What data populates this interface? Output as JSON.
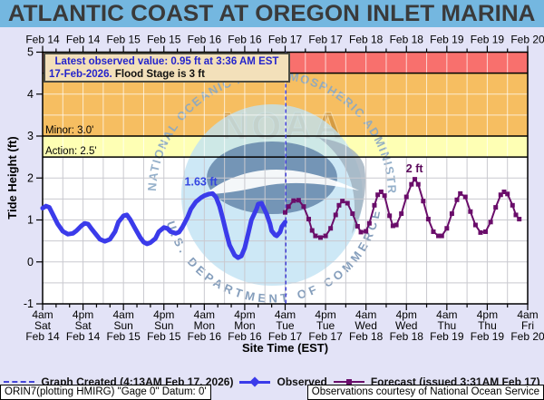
{
  "title": "ATLANTIC COAST AT OREGON INLET MARINA",
  "info_box": {
    "line1": "Latest observed value: 0.95 ft at 3:36 AM EST",
    "line2_date": "17-Feb-2026.",
    "line2_flood": " Flood Stage is 3 ft"
  },
  "axes": {
    "y_label": "Tide Height (ft)",
    "x_label": "Site Time (EST)",
    "y_ticks": [
      5,
      4,
      3,
      2,
      1,
      0,
      -1
    ],
    "top_dates": [
      "Feb 14",
      "Feb 14",
      "Feb 15",
      "Feb 15",
      "Feb 16",
      "Feb 16",
      "Feb 17",
      "Feb 17",
      "Feb 18",
      "Feb 18",
      "Feb 19",
      "Feb 19",
      "Feb 20"
    ],
    "bottom_ticks": [
      {
        "time": "4am",
        "day": "Sat",
        "date": "Feb 14"
      },
      {
        "time": "4pm",
        "day": "Sat",
        "date": "Feb 14"
      },
      {
        "time": "4am",
        "day": "Sun",
        "date": "Feb 15"
      },
      {
        "time": "4pm",
        "day": "Sun",
        "date": "Feb 15"
      },
      {
        "time": "4am",
        "day": "Mon",
        "date": "Feb 16"
      },
      {
        "time": "4pm",
        "day": "Mon",
        "date": "Feb 16"
      },
      {
        "time": "4am",
        "day": "Tue",
        "date": "Feb 17"
      },
      {
        "time": "4pm",
        "day": "Tue",
        "date": "Feb 17"
      },
      {
        "time": "4am",
        "day": "Wed",
        "date": "Feb 18"
      },
      {
        "time": "4pm",
        "day": "Wed",
        "date": "Feb 18"
      },
      {
        "time": "4am",
        "day": "Thu",
        "date": "Feb 19"
      },
      {
        "time": "4pm",
        "day": "Thu",
        "date": "Feb 19"
      },
      {
        "time": "4am",
        "day": "Fri",
        "date": "Feb 20"
      }
    ]
  },
  "legend": {
    "created": "Graph Created (4:13AM Feb 17, 2026)",
    "observed": "Observed",
    "forecast": "Forecast (issued 3:31AM Feb 17)"
  },
  "footer": {
    "left": "ORIN7(plotting HMIRG) \"Gage 0\" Datum: 0'",
    "right": "Observations courtesy of National Ocean Service"
  },
  "watermark": {
    "top_arc": "NATIONAL OCEANIC AND ATMOSPHERIC ADMINISTRATION",
    "bottom_arc": "U.S. DEPARTMENT OF COMMERCE",
    "noaa": "NOAA"
  },
  "colors": {
    "title_bg": "#74b7e0",
    "page_bg": "#e3e3f7",
    "band_moderate": "#f8706d",
    "band_minor": "#f6be61",
    "band_action": "#feffb4",
    "plot_bg": "#ffffff",
    "observed": "#3b3bea",
    "forecast": "#6a0d6a",
    "created_line": "#4040d8",
    "grid": "#c9c9cf",
    "grid_on_band": "rgba(255,255,255,0.7)",
    "threshold_line": "#000000",
    "info_box_bg": "#f3e0ba",
    "obs_label": "#3344e0",
    "fct_label": "#5c0b5c"
  },
  "chart_data": {
    "type": "line",
    "x_axis": "hours since Feb 14 4am EST",
    "x_range": [
      0,
      144
    ],
    "ylim": [
      -1,
      5
    ],
    "grid": true,
    "thresholds": {
      "moderate": 4.5,
      "minor": 3.0,
      "action": 2.5,
      "minor_label": "Minor: 3.0'",
      "action_label": "Action: 2.5'"
    },
    "annotations": [
      {
        "text": "1.63 ft",
        "t": 47.0,
        "v": 1.82,
        "color": "#3344e0"
      },
      {
        "text": "2 ft",
        "t": 110.4,
        "v": 2.13,
        "color": "#5c0b5c"
      }
    ],
    "created_time_t": 72.2,
    "series": [
      {
        "name": "Observed",
        "color": "#3b3bea",
        "marker": "none",
        "points": [
          [
            0,
            1.28
          ],
          [
            1,
            1.33
          ],
          [
            2,
            1.3
          ],
          [
            3,
            1.14
          ],
          [
            4.5,
            0.9
          ],
          [
            6,
            0.73
          ],
          [
            7.5,
            0.66
          ],
          [
            9,
            0.68
          ],
          [
            10,
            0.74
          ],
          [
            11.5,
            0.86
          ],
          [
            12.5,
            0.92
          ],
          [
            13.5,
            0.9
          ],
          [
            14.5,
            0.79
          ],
          [
            16,
            0.64
          ],
          [
            17,
            0.54
          ],
          [
            18.5,
            0.49
          ],
          [
            20,
            0.54
          ],
          [
            21.5,
            0.72
          ],
          [
            22.5,
            0.95
          ],
          [
            24,
            1.1
          ],
          [
            25,
            1.12
          ],
          [
            26,
            1.01
          ],
          [
            27.5,
            0.79
          ],
          [
            29,
            0.58
          ],
          [
            30,
            0.47
          ],
          [
            31,
            0.43
          ],
          [
            32,
            0.46
          ],
          [
            33.5,
            0.56
          ],
          [
            34.5,
            0.72
          ],
          [
            36,
            0.82
          ],
          [
            37,
            0.8
          ],
          [
            38,
            0.72
          ],
          [
            39.5,
            0.68
          ],
          [
            40.5,
            0.71
          ],
          [
            41.5,
            0.83
          ],
          [
            43,
            1.06
          ],
          [
            44,
            1.26
          ],
          [
            45.5,
            1.43
          ],
          [
            47,
            1.53
          ],
          [
            48,
            1.58
          ],
          [
            49.5,
            1.62
          ],
          [
            50.5,
            1.63
          ],
          [
            51.5,
            1.54
          ],
          [
            52.5,
            1.33
          ],
          [
            53.5,
            1.03
          ],
          [
            54.5,
            0.7
          ],
          [
            55.5,
            0.4
          ],
          [
            57,
            0.16
          ],
          [
            58,
            0.1
          ],
          [
            59,
            0.14
          ],
          [
            60,
            0.33
          ],
          [
            61,
            0.66
          ],
          [
            62,
            1.0
          ],
          [
            63.5,
            1.26
          ],
          [
            64,
            1.38
          ],
          [
            65,
            1.4
          ],
          [
            65.5,
            1.31
          ],
          [
            66.5,
            1.14
          ],
          [
            67.5,
            0.91
          ],
          [
            68,
            0.74
          ],
          [
            69,
            0.64
          ],
          [
            69.5,
            0.62
          ],
          [
            70.5,
            0.71
          ],
          [
            71,
            0.84
          ],
          [
            72,
            0.95
          ]
        ]
      },
      {
        "name": "Forecast",
        "color": "#6a0d6a",
        "marker": "square",
        "points": [
          [
            72,
            1.18
          ],
          [
            73,
            1.32
          ],
          [
            74.5,
            1.46
          ],
          [
            76,
            1.47
          ],
          [
            77.5,
            1.32
          ],
          [
            79,
            1.02
          ],
          [
            80,
            0.75
          ],
          [
            81,
            0.62
          ],
          [
            82.5,
            0.58
          ],
          [
            84,
            0.62
          ],
          [
            85.5,
            0.8
          ],
          [
            87,
            1.12
          ],
          [
            88,
            1.35
          ],
          [
            89,
            1.45
          ],
          [
            90.5,
            1.4
          ],
          [
            92,
            1.15
          ],
          [
            93.5,
            0.85
          ],
          [
            94.5,
            0.71
          ],
          [
            96,
            0.73
          ],
          [
            97,
            0.92
          ],
          [
            98.5,
            1.35
          ],
          [
            99.5,
            1.6
          ],
          [
            100.5,
            1.67
          ],
          [
            101.5,
            1.58
          ],
          [
            103,
            1.1
          ],
          [
            104,
            0.86
          ],
          [
            105,
            0.88
          ],
          [
            106.5,
            1.15
          ],
          [
            108,
            1.55
          ],
          [
            109.5,
            1.85
          ],
          [
            110.5,
            1.97
          ],
          [
            111.5,
            1.85
          ],
          [
            113,
            1.45
          ],
          [
            114.5,
            1.02
          ],
          [
            116,
            0.72
          ],
          [
            117.5,
            0.62
          ],
          [
            118.5,
            0.62
          ],
          [
            120,
            0.8
          ],
          [
            121.5,
            1.15
          ],
          [
            123,
            1.48
          ],
          [
            124,
            1.63
          ],
          [
            125.5,
            1.55
          ],
          [
            127,
            1.2
          ],
          [
            128.5,
            0.88
          ],
          [
            130,
            0.7
          ],
          [
            131.5,
            0.72
          ],
          [
            133,
            0.95
          ],
          [
            134.5,
            1.3
          ],
          [
            136,
            1.6
          ],
          [
            137,
            1.67
          ],
          [
            138,
            1.62
          ],
          [
            139.5,
            1.35
          ],
          [
            140.5,
            1.12
          ],
          [
            141.5,
            1.02
          ]
        ]
      }
    ]
  }
}
